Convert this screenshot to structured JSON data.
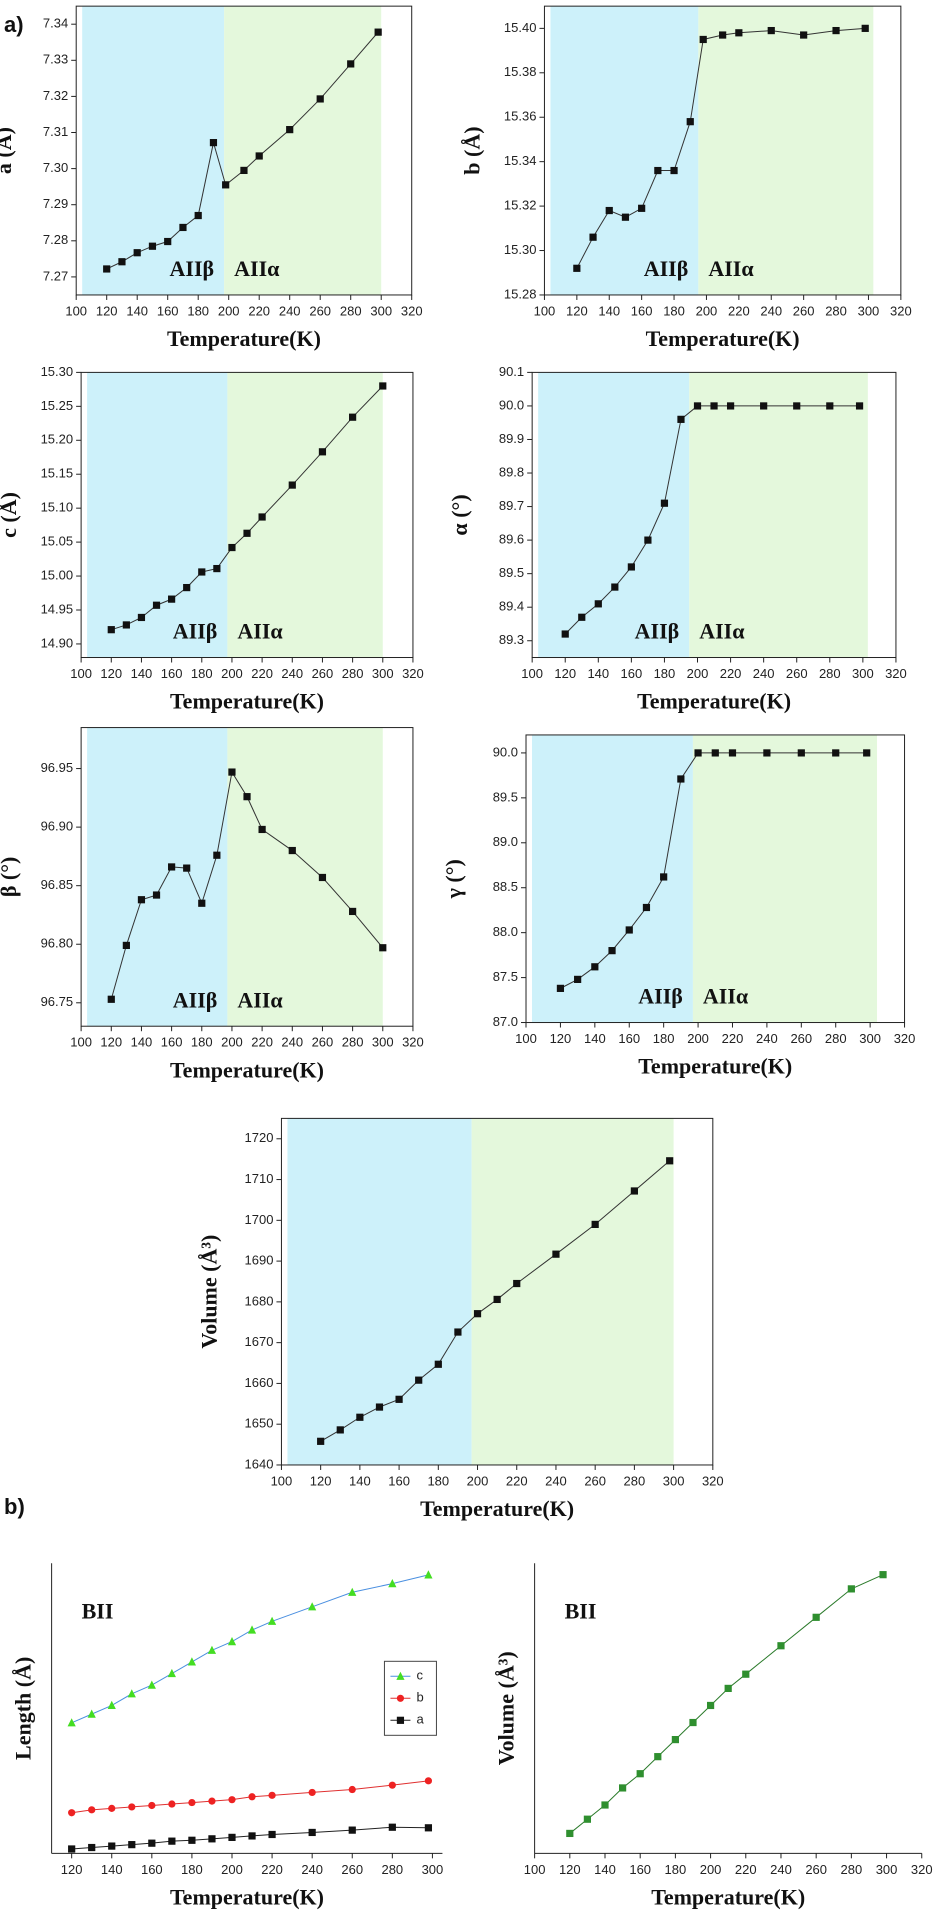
{
  "panels": [
    "a)",
    "b)"
  ],
  "chart_data": [
    {
      "type": "line",
      "ylabel": "a (Å)",
      "xlabel": "Temperature(K)",
      "frame": "box",
      "x": [
        120,
        130,
        140,
        150,
        160,
        170,
        180,
        190,
        198,
        210,
        220,
        240,
        260,
        280,
        298
      ],
      "series": [
        {
          "color": "#333333",
          "marker": "square",
          "marker_color": "#111111",
          "values": [
            7.2722,
            7.2742,
            7.2767,
            7.2785,
            7.2798,
            7.2837,
            7.287,
            7.3072,
            7.2955,
            7.2995,
            7.3035,
            7.3108,
            7.3193,
            7.329,
            7.3378
          ]
        }
      ],
      "xlim": [
        100,
        320
      ],
      "xticks": [
        100,
        120,
        140,
        160,
        180,
        200,
        220,
        240,
        260,
        280,
        300,
        320
      ],
      "ylim": [
        7.265,
        7.345
      ],
      "yticks": [
        7.27,
        7.28,
        7.29,
        {
          "value": 7.3,
          "label": "7.30"
        },
        7.31,
        7.32,
        7.33,
        7.34
      ],
      "regions": [
        {
          "label": "AIIβ",
          "from": 100,
          "to": 197,
          "color": "#cdf1fa"
        },
        {
          "label": "AIIα",
          "from": 197,
          "to": 300,
          "color": "#e4f8dc"
        }
      ]
    },
    {
      "type": "line",
      "ylabel": "b (Å)",
      "xlabel": "Temperature(K)",
      "frame": "box",
      "x": [
        120,
        130,
        140,
        150,
        160,
        170,
        180,
        190,
        198,
        210,
        220,
        240,
        260,
        280,
        298
      ],
      "series": [
        {
          "color": "#333333",
          "marker": "square",
          "marker_color": "#111111",
          "values": [
            15.292,
            15.306,
            15.318,
            15.315,
            15.319,
            15.336,
            15.336,
            15.358,
            15.395,
            15.397,
            15.398,
            15.399,
            15.397,
            15.399,
            15.4
          ]
        }
      ],
      "xlim": [
        100,
        320
      ],
      "xticks": [
        100,
        120,
        140,
        160,
        180,
        200,
        220,
        240,
        260,
        280,
        300,
        320
      ],
      "ylim": [
        15.28,
        15.41
      ],
      "yticks": [
        15.28,
        {
          "value": 15.3,
          "label": "15.30"
        },
        15.32,
        15.34,
        15.36,
        15.38,
        {
          "value": 15.4,
          "label": "15.40"
        }
      ],
      "regions": [
        {
          "label": "AIIβ",
          "from": 100,
          "to": 195,
          "color": "#cdf1fa"
        },
        {
          "label": "AIIα",
          "from": 195,
          "to": 303,
          "color": "#e4f8dc"
        }
      ]
    },
    {
      "type": "line",
      "ylabel": "c (Å)",
      "xlabel": "Temperature(K)",
      "frame": "box",
      "x": [
        120,
        130,
        140,
        150,
        160,
        170,
        180,
        190,
        200,
        210,
        220,
        240,
        260,
        280,
        300
      ],
      "series": [
        {
          "color": "#333333",
          "marker": "square",
          "marker_color": "#111111",
          "values": [
            14.921,
            14.928,
            14.939,
            14.957,
            14.966,
            14.983,
            15.006,
            15.011,
            15.042,
            15.063,
            15.087,
            15.134,
            15.183,
            15.234,
            15.28
          ]
        }
      ],
      "xlim": [
        100,
        320
      ],
      "xticks": [
        100,
        120,
        140,
        160,
        180,
        200,
        220,
        240,
        260,
        280,
        300,
        320
      ],
      "ylim": [
        14.88,
        15.3
      ],
      "yticks": [
        {
          "value": 14.9,
          "label": "14.90"
        },
        14.95,
        {
          "value": 15,
          "label": "15.00"
        },
        15.05,
        {
          "value": 15.1,
          "label": "15.10"
        },
        15.15,
        {
          "value": 15.2,
          "label": "15.20"
        },
        15.25,
        {
          "value": 15.3,
          "label": "15.30"
        }
      ],
      "regions": [
        {
          "label": "AIIβ",
          "from": 100,
          "to": 197,
          "color": "#cdf1fa"
        },
        {
          "label": "AIIα",
          "from": 197,
          "to": 300,
          "color": "#e4f8dc"
        }
      ]
    },
    {
      "type": "line",
      "ylabel": "α (°)",
      "xlabel": "Temperature(K)",
      "frame": "box",
      "x": [
        120,
        130,
        140,
        150,
        160,
        170,
        180,
        190,
        200,
        210,
        220,
        240,
        260,
        280,
        298
      ],
      "series": [
        {
          "color": "#333333",
          "marker": "square",
          "marker_color": "#111111",
          "values": [
            89.32,
            89.37,
            89.41,
            89.46,
            89.52,
            89.6,
            89.71,
            89.96,
            90,
            90,
            90,
            90,
            90,
            90,
            90
          ]
        }
      ],
      "xlim": [
        100,
        320
      ],
      "xticks": [
        100,
        120,
        140,
        160,
        180,
        200,
        220,
        240,
        260,
        280,
        300,
        320
      ],
      "ylim": [
        89.25,
        90.1
      ],
      "yticks": [
        89.3,
        89.4,
        89.5,
        89.6,
        89.7,
        89.8,
        89.9,
        {
          "value": 90,
          "label": "90.0"
        },
        90.1
      ],
      "regions": [
        {
          "label": "AIIβ",
          "from": 100,
          "to": 195,
          "color": "#cdf1fa"
        },
        {
          "label": "AIIα",
          "from": 195,
          "to": 303,
          "color": "#e4f8dc"
        }
      ]
    },
    {
      "type": "line",
      "ylabel": "β (°)",
      "xlabel": "Temperature(K)",
      "frame": "box",
      "x": [
        120,
        130,
        140,
        150,
        160,
        170,
        180,
        190,
        200,
        210,
        220,
        240,
        260,
        280,
        300
      ],
      "series": [
        {
          "color": "#333333",
          "marker": "square",
          "marker_color": "#111111",
          "values": [
            96.753,
            96.799,
            96.838,
            96.842,
            96.866,
            96.865,
            96.835,
            96.876,
            96.947,
            96.926,
            96.898,
            96.88,
            96.857,
            96.828,
            96.797
          ]
        }
      ],
      "xlim": [
        100,
        320
      ],
      "xticks": [
        100,
        120,
        140,
        160,
        180,
        200,
        220,
        240,
        260,
        280,
        300,
        320
      ],
      "ylim": [
        96.73,
        96.985
      ],
      "yticks": [
        96.75,
        {
          "value": 96.8,
          "label": "96.80"
        },
        96.85,
        {
          "value": 96.9,
          "label": "96.90"
        },
        96.95
      ],
      "regions": [
        {
          "label": "AIIβ",
          "from": 100,
          "to": 197,
          "color": "#cdf1fa"
        },
        {
          "label": "AIIα",
          "from": 197,
          "to": 300,
          "color": "#e4f8dc"
        }
      ]
    },
    {
      "type": "line",
      "ylabel": "γ (°)",
      "xlabel": "Temperature(K)",
      "frame": "box",
      "x": [
        120,
        130,
        140,
        150,
        160,
        170,
        180,
        190,
        200,
        210,
        220,
        240,
        260,
        280,
        298
      ],
      "series": [
        {
          "color": "#333333",
          "marker": "square",
          "marker_color": "#111111",
          "values": [
            87.38,
            87.48,
            87.62,
            87.8,
            88.03,
            88.28,
            88.62,
            89.71,
            90,
            90,
            90,
            90,
            90,
            90,
            90
          ]
        }
      ],
      "xlim": [
        100,
        320
      ],
      "xticks": [
        100,
        120,
        140,
        160,
        180,
        200,
        220,
        240,
        260,
        280,
        300,
        320
      ],
      "ylim": [
        87,
        90.2
      ],
      "yticks": [
        {
          "value": 87,
          "label": "87.0"
        },
        87.5,
        {
          "value": 88,
          "label": "88.0"
        },
        88.5,
        {
          "value": 89,
          "label": "89.0"
        },
        89.5,
        {
          "value": 90,
          "label": "90.0"
        }
      ],
      "regions": [
        {
          "label": "AIIβ",
          "from": 100,
          "to": 197,
          "color": "#cdf1fa"
        },
        {
          "label": "AIIα",
          "from": 197,
          "to": 304,
          "color": "#e4f8dc"
        }
      ]
    },
    {
      "type": "line",
      "ylabel": "Volume (Å³)",
      "xlabel": "Temperature(K)",
      "frame": "box",
      "x": [
        120,
        130,
        140,
        150,
        160,
        170,
        180,
        190,
        200,
        210,
        220,
        240,
        260,
        280,
        298
      ],
      "series": [
        {
          "color": "#333333",
          "marker": "square",
          "marker_color": "#111111",
          "values": [
            1645.8,
            1648.6,
            1651.7,
            1654.2,
            1656.1,
            1660.8,
            1664.7,
            1672.6,
            1677.1,
            1680.6,
            1684.5,
            1691.7,
            1699,
            1707.2,
            1714.6
          ]
        }
      ],
      "xlim": [
        100,
        320
      ],
      "xticks": [
        100,
        120,
        140,
        160,
        180,
        200,
        220,
        240,
        260,
        280,
        300,
        320
      ],
      "ylim": [
        1640,
        1725
      ],
      "yticks": [
        1640,
        1650,
        1660,
        1670,
        1680,
        1690,
        1700,
        1710,
        1720
      ],
      "regions": [
        {
          "from": 100,
          "to": 197,
          "color": "#cdf1fa"
        },
        {
          "from": 197,
          "to": 300,
          "color": "#e4f8dc"
        }
      ]
    },
    {
      "type": "line",
      "ylabel": "Length (Å)",
      "xlabel": "Temperature(K)",
      "frame": "axes",
      "annotation": "BII",
      "legend": "center right",
      "x": [
        120,
        130,
        140,
        150,
        160,
        170,
        180,
        190,
        200,
        210,
        220,
        240,
        260,
        280,
        298
      ],
      "series": [
        {
          "name": "c",
          "color": "#4a8fe0",
          "marker": "triangle",
          "marker_color": "#44dd22",
          "values": [
            4.5,
            4.8,
            5.1,
            5.5,
            5.8,
            6.2,
            6.6,
            7.0,
            7.3,
            7.7,
            8.0,
            8.5,
            9.0,
            9.3,
            9.6
          ]
        },
        {
          "name": "b",
          "color": "#e03030",
          "marker": "circle",
          "marker_color": "#ee2222",
          "values": [
            1.4,
            1.5,
            1.55,
            1.6,
            1.65,
            1.7,
            1.75,
            1.8,
            1.85,
            1.95,
            2.0,
            2.1,
            2.2,
            2.35,
            2.5
          ]
        },
        {
          "name": "a",
          "color": "#222222",
          "marker": "square",
          "marker_color": "#111111",
          "values": [
            0.15,
            0.2,
            0.25,
            0.3,
            0.35,
            0.42,
            0.45,
            0.5,
            0.55,
            0.6,
            0.65,
            0.72,
            0.8,
            0.9,
            0.88
          ]
        }
      ],
      "xlim": [
        110,
        305
      ],
      "xticks": [
        120,
        140,
        160,
        180,
        200,
        220,
        240,
        260,
        280,
        300
      ],
      "ylim": [
        0,
        10
      ]
    },
    {
      "type": "line",
      "ylabel": "Volume (Å³)",
      "xlabel": "Temperature(K)",
      "frame": "axes",
      "annotation": "BII",
      "x": [
        120,
        130,
        140,
        150,
        160,
        170,
        180,
        190,
        200,
        210,
        220,
        240,
        260,
        280,
        298
      ],
      "series": [
        {
          "color": "#2a7a2a",
          "marker": "square",
          "marker_color": "#2f8f2f",
          "values": [
            0.7,
            1.2,
            1.7,
            2.3,
            2.8,
            3.4,
            4.0,
            4.6,
            5.2,
            5.8,
            6.3,
            7.3,
            8.3,
            9.3,
            9.8
          ]
        }
      ],
      "xlim": [
        100,
        320
      ],
      "xticks": [
        100,
        120,
        140,
        160,
        180,
        200,
        220,
        240,
        260,
        280,
        300,
        320
      ],
      "ylim": [
        0,
        10.2
      ]
    }
  ]
}
